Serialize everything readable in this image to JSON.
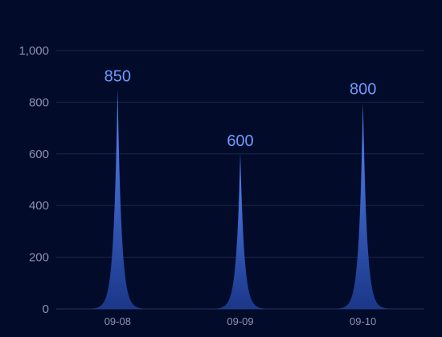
{
  "chart_data": {
    "type": "area",
    "title": "",
    "xlabel": "",
    "ylabel": "",
    "categories": [
      "09-08",
      "09-09",
      "09-10"
    ],
    "values": [
      850,
      600,
      800
    ],
    "data_labels": [
      "850",
      "600",
      "800"
    ],
    "y_ticks": [
      "0",
      "200",
      "400",
      "600",
      "800",
      "1,000"
    ],
    "ylim": [
      0,
      1000
    ],
    "grid": true,
    "legend": "none",
    "colors": {
      "background": "#020b2a",
      "peak_top": "#5b8cff",
      "peak_bottom": "#1f3f9a",
      "label": "#6f9bff",
      "tick": "#8a93ad",
      "grid": "#1d2748"
    }
  }
}
